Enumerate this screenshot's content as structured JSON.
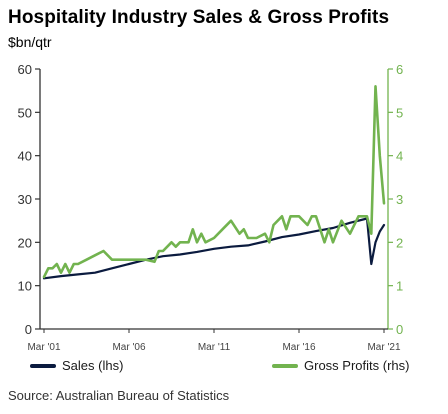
{
  "colors": {
    "sales": "#0b1b3f",
    "profits": "#72b34f",
    "axis_left": "#333333"
  },
  "chart_data": {
    "type": "line",
    "title": "Hospitality Industry Sales & Gross Profits",
    "ylabel": "$bn/qtr",
    "x_tick_labels": [
      "Mar '01",
      "Mar '06",
      "Mar '11",
      "Mar '16",
      "Mar '21"
    ],
    "xlim": [
      "Mar 2001",
      "Mar 2021"
    ],
    "y_left": {
      "ticks": [
        0,
        10,
        20,
        30,
        40,
        50,
        60
      ],
      "lim": [
        0,
        60
      ]
    },
    "y_right": {
      "ticks": [
        0,
        1,
        2,
        3,
        4,
        5,
        6
      ],
      "lim": [
        0,
        6
      ]
    },
    "grid": false,
    "legend": "bottom",
    "series": [
      {
        "name": "Sales (lhs)",
        "axis": "left",
        "x": [
          "Mar 2001",
          "Mar 2002",
          "Mar 2003",
          "Mar 2004",
          "Mar 2005",
          "Mar 2006",
          "Mar 2007",
          "Mar 2008",
          "Mar 2009",
          "Mar 2010",
          "Mar 2011",
          "Mar 2012",
          "Mar 2013",
          "Mar 2014",
          "Mar 2015",
          "Mar 2016",
          "Mar 2017",
          "Mar 2018",
          "Mar 2019",
          "Mar 2020",
          "Jun 2020",
          "Sep 2020",
          "Dec 2020",
          "Mar 2021"
        ],
        "values": [
          11.7,
          12.2,
          12.6,
          13.0,
          14.0,
          15.0,
          16.0,
          16.8,
          17.2,
          17.8,
          18.5,
          19.0,
          19.3,
          20.2,
          21.2,
          21.8,
          22.6,
          23.3,
          24.5,
          25.5,
          15.0,
          20.0,
          22.5,
          24.0
        ]
      },
      {
        "name": "Gross Profits (rhs)",
        "axis": "right",
        "x": [
          "Mar 2001",
          "Jun 2001",
          "Sep 2001",
          "Dec 2001",
          "Mar 2002",
          "Jun 2002",
          "Sep 2002",
          "Dec 2002",
          "Mar 2003",
          "Sep 2003",
          "Mar 2004",
          "Sep 2004",
          "Mar 2005",
          "Sep 2005",
          "Mar 2006",
          "Sep 2006",
          "Mar 2007",
          "Sep 2007",
          "Dec 2007",
          "Mar 2008",
          "Sep 2008",
          "Dec 2008",
          "Mar 2009",
          "Sep 2009",
          "Dec 2009",
          "Mar 2010",
          "Jun 2010",
          "Sep 2010",
          "Mar 2011",
          "Sep 2011",
          "Mar 2012",
          "Sep 2012",
          "Dec 2012",
          "Mar 2013",
          "Sep 2013",
          "Mar 2014",
          "Jun 2014",
          "Sep 2014",
          "Mar 2015",
          "Jun 2015",
          "Sep 2015",
          "Mar 2016",
          "Sep 2016",
          "Dec 2016",
          "Mar 2017",
          "Sep 2017",
          "Dec 2017",
          "Mar 2018",
          "Sep 2018",
          "Mar 2019",
          "Sep 2019",
          "Mar 2020",
          "Jun 2020",
          "Sep 2020",
          "Dec 2020",
          "Mar 2021"
        ],
        "values": [
          1.2,
          1.4,
          1.4,
          1.5,
          1.3,
          1.5,
          1.3,
          1.5,
          1.5,
          1.6,
          1.7,
          1.8,
          1.6,
          1.6,
          1.6,
          1.6,
          1.6,
          1.55,
          1.8,
          1.8,
          2.0,
          1.9,
          2.0,
          2.0,
          2.3,
          2.0,
          2.2,
          2.0,
          2.1,
          2.3,
          2.5,
          2.2,
          2.3,
          2.1,
          2.1,
          2.2,
          2.0,
          2.4,
          2.6,
          2.3,
          2.6,
          2.6,
          2.4,
          2.6,
          2.6,
          2.0,
          2.3,
          2.0,
          2.5,
          2.2,
          2.6,
          2.6,
          2.2,
          5.6,
          4.0,
          2.9
        ]
      }
    ]
  },
  "legend_labels": {
    "sales": "Sales (lhs)",
    "profits": "Gross Profits (rhs)"
  },
  "source": "Source: Australian Bureau of Statistics"
}
